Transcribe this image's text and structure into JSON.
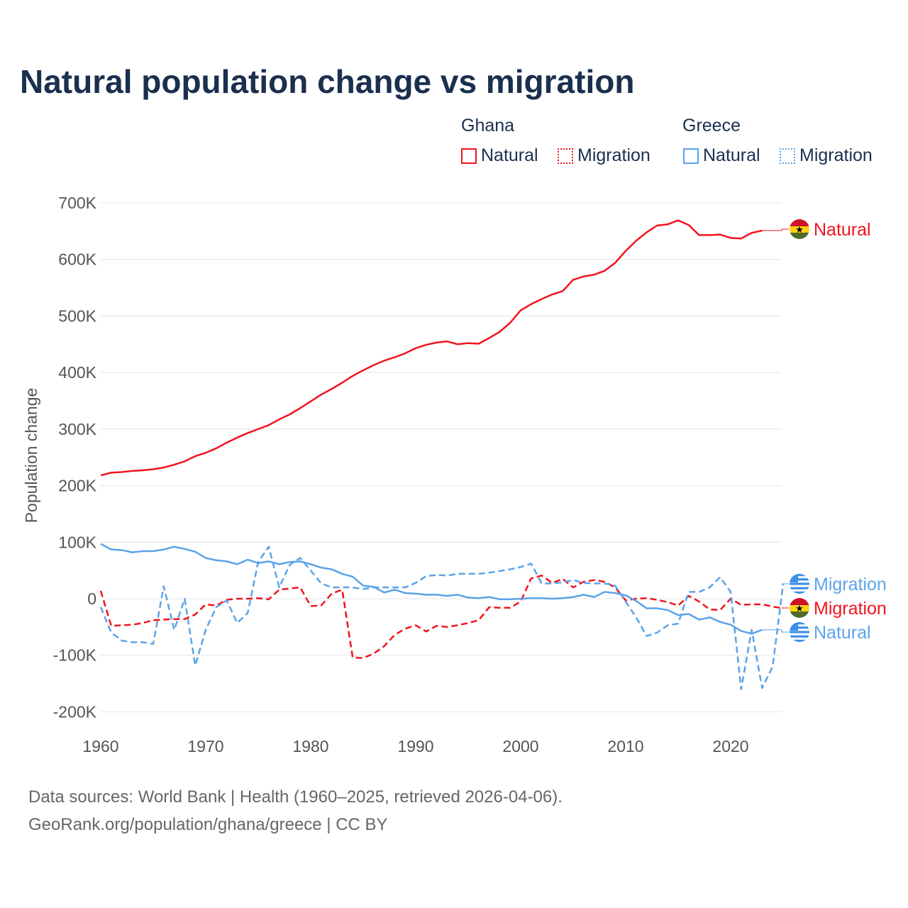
{
  "chart_data": {
    "type": "line",
    "title": "Natural population change vs migration",
    "xlabel": "",
    "ylabel": "Population change",
    "xlim": [
      1960,
      2025
    ],
    "ylim": [
      -200000,
      700000
    ],
    "yticks": [
      {
        "v": 700000,
        "label": "700K"
      },
      {
        "v": 600000,
        "label": "600K"
      },
      {
        "v": 500000,
        "label": "500K"
      },
      {
        "v": 400000,
        "label": "400K"
      },
      {
        "v": 300000,
        "label": "300K"
      },
      {
        "v": 200000,
        "label": "200K"
      },
      {
        "v": 100000,
        "label": "100K"
      },
      {
        "v": 0,
        "label": "0"
      },
      {
        "v": -100000,
        "label": "-100K"
      },
      {
        "v": -200000,
        "label": "-200K"
      }
    ],
    "xticks": [
      {
        "v": 1960,
        "label": "1960"
      },
      {
        "v": 1970,
        "label": "1970"
      },
      {
        "v": 1980,
        "label": "1980"
      },
      {
        "v": 1990,
        "label": "1990"
      },
      {
        "v": 2000,
        "label": "2000"
      },
      {
        "v": 2010,
        "label": "2010"
      },
      {
        "v": 2020,
        "label": "2020"
      }
    ],
    "grid": true,
    "legend_placement": "top-right",
    "legend": {
      "groups": [
        {
          "name": "Ghana",
          "items": [
            "Natural",
            "Migration"
          ]
        },
        {
          "name": "Greece",
          "items": [
            "Natural",
            "Migration"
          ]
        }
      ]
    },
    "series": [
      {
        "country": "Ghana",
        "name": "Natural",
        "color": "#f0141e",
        "dash": false,
        "start": 1960,
        "end_label": "Natural",
        "flag": "ghana",
        "values": [
          218,
          223,
          224,
          226,
          227,
          229,
          232,
          237,
          243,
          252,
          258,
          266,
          276,
          285,
          293,
          300,
          307,
          317,
          326,
          337,
          349,
          361,
          371,
          382,
          394,
          404,
          413,
          421,
          427,
          434,
          443,
          449,
          453,
          455,
          450,
          452,
          451,
          461,
          472,
          488,
          510,
          521,
          530,
          538,
          544,
          564,
          570,
          573,
          580,
          594,
          615,
          633,
          648,
          660,
          662,
          669,
          661,
          643,
          643,
          644,
          638,
          637,
          647,
          651
        ]
      },
      {
        "country": "Ghana",
        "name": "Migration",
        "color": "#f0141e",
        "dash": true,
        "start": 1960,
        "end_label": "Migration",
        "flag": "ghana",
        "values": [
          14,
          -48,
          -47,
          -46,
          -43,
          -38,
          -37,
          -36,
          -36,
          -28,
          -10,
          -12,
          -2,
          0,
          0,
          1,
          -1,
          16,
          18,
          20,
          -13,
          -12,
          9,
          16,
          -104,
          -105,
          -97,
          -84,
          -64,
          -53,
          -47,
          -58,
          -48,
          -50,
          -47,
          -43,
          -38,
          -15,
          -16,
          -16,
          -5,
          36,
          41,
          28,
          35,
          20,
          30,
          33,
          30,
          20,
          -3,
          0,
          1,
          -2,
          -6,
          -12,
          5,
          -5,
          -19,
          -20,
          0,
          -11,
          -10,
          -10,
          -14,
          -17
        ]
      },
      {
        "country": "Greece",
        "name": "Natural",
        "color": "#5ba3e8",
        "dash": false,
        "start": 1960,
        "end_label": "Natural",
        "flag": "greece",
        "values": [
          97,
          87,
          86,
          82,
          84,
          84,
          87,
          92,
          88,
          83,
          72,
          68,
          66,
          61,
          69,
          63,
          66,
          61,
          65,
          66,
          61,
          55,
          52,
          44,
          39,
          23,
          21,
          11,
          16,
          10,
          9,
          7,
          7,
          5,
          7,
          2,
          1,
          3,
          -1,
          -1,
          0,
          1,
          1,
          0,
          1,
          3,
          7,
          3,
          12,
          10,
          6,
          -4,
          -17,
          -17,
          -20,
          -29,
          -27,
          -37,
          -33,
          -41,
          -46,
          -57,
          -62,
          -55
        ]
      },
      {
        "country": "Greece",
        "name": "Migration",
        "color": "#5ba3e8",
        "dash": true,
        "start": 1960,
        "end_label": "Migration",
        "flag": "greece",
        "values": [
          -15,
          -60,
          -74,
          -77,
          -77,
          -80,
          22,
          -55,
          0,
          -118,
          -55,
          -15,
          -3,
          -43,
          -25,
          65,
          92,
          20,
          60,
          72,
          50,
          27,
          20,
          20,
          20,
          17,
          20,
          20,
          20,
          20,
          28,
          40,
          42,
          41,
          44,
          44,
          44,
          46,
          49,
          52,
          56,
          62,
          27,
          27,
          29,
          33,
          28,
          27,
          27,
          23,
          -5,
          -33,
          -66,
          -60,
          -47,
          -44,
          12,
          12,
          20,
          38,
          12,
          -160,
          -55,
          -158,
          -120,
          26
        ]
      }
    ],
    "value_unit": "thousands"
  },
  "footer": {
    "line1": "Data sources: World Bank | Health (1960–2025, retrieved 2026-04-06).",
    "line2": "GeoRank.org/population/ghana/greece | CC BY"
  }
}
